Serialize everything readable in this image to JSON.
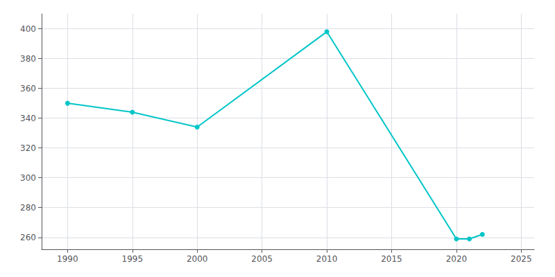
{
  "chart_data": {
    "type": "line",
    "x": [
      1990,
      1995,
      2000,
      2010,
      2020,
      2021,
      2022
    ],
    "values": [
      350,
      344,
      334,
      398,
      259,
      259,
      262
    ],
    "color": "#00C5C8",
    "marker": "circle",
    "xlim": [
      1988,
      2026
    ],
    "xticks": [
      1990,
      1995,
      2000,
      2005,
      2010,
      2015,
      2020,
      2025
    ],
    "ylim": [
      252,
      410
    ],
    "yticks": [
      260,
      280,
      300,
      320,
      340,
      360,
      380,
      400
    ],
    "grid": true
  }
}
